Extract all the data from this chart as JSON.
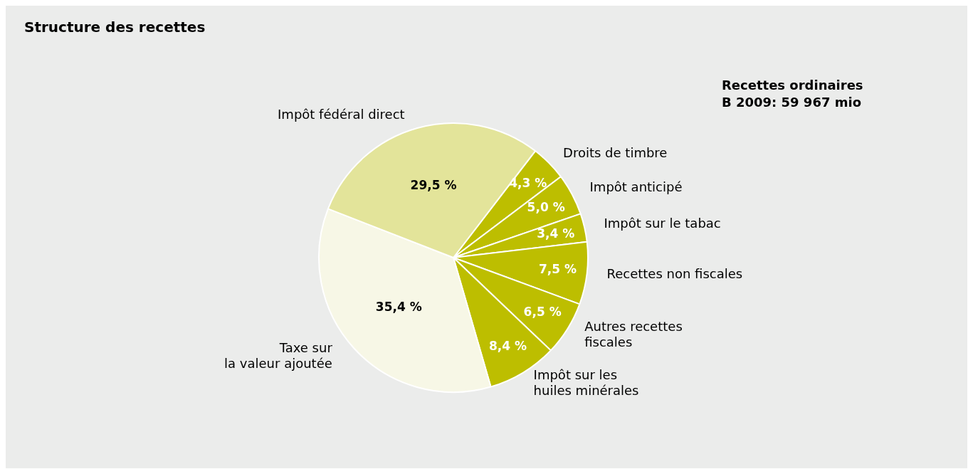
{
  "chart_data": {
    "type": "pie",
    "title": "Structure des recettes",
    "annotations": [
      "Recettes ordinaires",
      "B 2009: 59 967 mio"
    ],
    "categories": [
      "Droits de timbre",
      "Impôt anticipé",
      "Impôt sur le tabac",
      "Recettes non fiscales",
      "Autres recettes\nfiscales",
      "Impôt sur les\nhuiles minérales",
      "Taxe sur\nla valeur ajoutée",
      "Impôt fédéral direct"
    ],
    "values": [
      4.3,
      5.0,
      3.4,
      7.5,
      6.5,
      8.4,
      35.4,
      29.5
    ],
    "value_labels": [
      "4,3 %",
      "5,0 %",
      "3,4 %",
      "7,5 %",
      "6,5 %",
      "8,4 %",
      "35,4 %",
      "29,5 %"
    ],
    "colors": [
      "#bdbe00",
      "#bdbe00",
      "#bdbe00",
      "#bdbe00",
      "#bdbe00",
      "#bdbe00",
      "#f7f7e6",
      "#e3e49a"
    ]
  }
}
